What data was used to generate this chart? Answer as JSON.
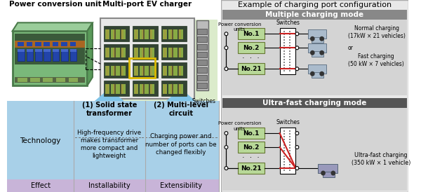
{
  "left_header1": "Power conversion unit",
  "left_header2": "Multi-port EV charger",
  "right_header": "Example of charging port configuration",
  "mode1_title": "Multiple charging mode",
  "mode2_title": "Ultra-fast charging mode",
  "pcu_label": "Power conversion\nunits",
  "switches_label": "Switches",
  "nodes": [
    "No.1",
    "No.2",
    "No.21"
  ],
  "dots": "·  ·  ·",
  "normal_charging": "Normal charging\n(17kW × 21 vehicles)",
  "or_text": "or",
  "fast_charging": "Fast charging\n(50 kW × 7 vehicles)",
  "ultra_charging": "Ultra-fast charging\n(350 kW × 1 vehicle)",
  "technology_label": "Technology",
  "effect_label": "Effect",
  "tech1_title": "(1) Solid state\ntransformer",
  "tech1_desc": "High-frequency drive\nmakes transformer\nmore compact and\nlightweight",
  "tech1_effect": "Installability",
  "tech2_title": "(2) Multi-level\ncircuit",
  "tech2_desc": "Charging power and\nnumber of ports can be\nchanged flexibly",
  "tech2_effect": "Extensibility",
  "table_blue": "#a8d0e8",
  "table_footer_purple": "#c8b4d8",
  "node_green": "#b8d898",
  "mode_header_gray": "#888888",
  "mode_body_gray": "#d4d4d4",
  "right_bg": "#e8e8e8",
  "switch_white": "#ffffff",
  "arrow_blue": "#80c4e8"
}
